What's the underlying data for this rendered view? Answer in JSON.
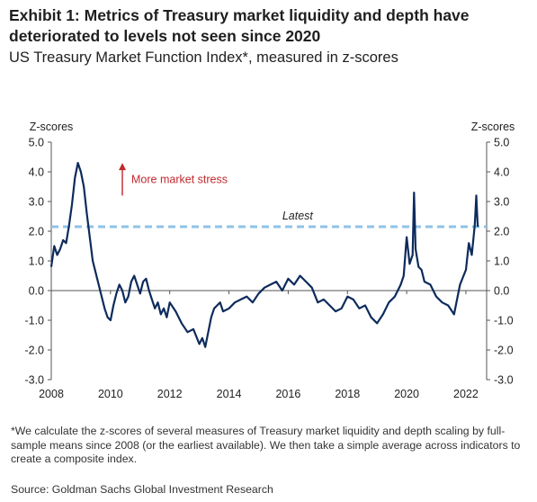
{
  "header": {
    "title": "Exhibit 1: Metrics of Treasury market liquidity and depth have deteriorated to levels not seen since 2020",
    "subtitle": "US Treasury Market Function Index*, measured in z-scores"
  },
  "footer": {
    "footnote": "*We calculate the z-scores of several measures of Treasury market liquidity and depth scaling by full-sample means since 2008 (or the earliest available). We then take a simple average across indicators to create a composite index.",
    "source": "Source: Goldman Sachs Global Investment Research"
  },
  "colors": {
    "line": "#0d2b5c",
    "latest": "#8fc3e8",
    "annotation": "#c0282d",
    "axis": "#555555"
  },
  "chart_data": {
    "type": "line",
    "ylabel_left": "Z-scores",
    "ylabel_right": "Z-scores",
    "ylim": [
      -3.0,
      5.0
    ],
    "xlim": [
      2008,
      2022.7
    ],
    "y_ticks": [
      {
        "value": 5.0,
        "label": "5.0"
      },
      {
        "value": 4.0,
        "label": "4.0"
      },
      {
        "value": 3.0,
        "label": "3.0"
      },
      {
        "value": 2.0,
        "label": "2.0"
      },
      {
        "value": 1.0,
        "label": "1.0"
      },
      {
        "value": 0.0,
        "label": "0.0"
      },
      {
        "value": -1.0,
        "label": "-1.0"
      },
      {
        "value": -2.0,
        "label": "-2.0"
      },
      {
        "value": -3.0,
        "label": "-3.0"
      }
    ],
    "x_ticks": [
      {
        "value": 2008,
        "label": "2008"
      },
      {
        "value": 2010,
        "label": "2010"
      },
      {
        "value": 2012,
        "label": "2012"
      },
      {
        "value": 2014,
        "label": "2014"
      },
      {
        "value": 2016,
        "label": "2016"
      },
      {
        "value": 2018,
        "label": "2018"
      },
      {
        "value": 2020,
        "label": "2020"
      },
      {
        "value": 2022,
        "label": "2022"
      }
    ],
    "grid": false,
    "latest": {
      "value": 2.15,
      "label": "Latest"
    },
    "annotation": {
      "label": "More market stress",
      "x": 2010.4,
      "y_from": 3.2,
      "y_to": 4.3
    },
    "series": [
      {
        "x": [
          2008.0,
          2008.1,
          2008.2,
          2008.3,
          2008.4,
          2008.5,
          2008.6,
          2008.7,
          2008.8,
          2008.9,
          2009.0,
          2009.1,
          2009.2,
          2009.3,
          2009.4,
          2009.5,
          2009.6,
          2009.7,
          2009.8,
          2009.9,
          2010.0,
          2010.1,
          2010.2,
          2010.3,
          2010.4,
          2010.5,
          2010.6,
          2010.7,
          2010.8,
          2010.9,
          2011.0,
          2011.1,
          2011.2,
          2011.3,
          2011.4,
          2011.5,
          2011.6,
          2011.7,
          2011.8,
          2011.9,
          2012.0,
          2012.2,
          2012.4,
          2012.6,
          2012.8,
          2013.0,
          2013.1,
          2013.2,
          2013.3,
          2013.4,
          2013.5,
          2013.6,
          2013.7,
          2013.8,
          2014.0,
          2014.2,
          2014.4,
          2014.6,
          2014.8,
          2015.0,
          2015.2,
          2015.4,
          2015.6,
          2015.8,
          2016.0,
          2016.2,
          2016.4,
          2016.6,
          2016.8,
          2017.0,
          2017.2,
          2017.4,
          2017.6,
          2017.8,
          2018.0,
          2018.2,
          2018.4,
          2018.6,
          2018.8,
          2019.0,
          2019.2,
          2019.4,
          2019.6,
          2019.8,
          2019.9,
          2020.0,
          2020.1,
          2020.2,
          2020.25,
          2020.3,
          2020.4,
          2020.5,
          2020.6,
          2020.8,
          2021.0,
          2021.2,
          2021.4,
          2021.6,
          2021.8,
          2022.0,
          2022.1,
          2022.2,
          2022.3,
          2022.35,
          2022.4
        ],
        "values": [
          0.8,
          1.5,
          1.2,
          1.4,
          1.7,
          1.6,
          2.2,
          2.9,
          3.8,
          4.3,
          4.0,
          3.5,
          2.6,
          1.8,
          1.0,
          0.6,
          0.2,
          -0.2,
          -0.6,
          -0.9,
          -1.0,
          -0.5,
          -0.1,
          0.2,
          0.0,
          -0.4,
          -0.2,
          0.3,
          0.5,
          0.2,
          -0.1,
          0.3,
          0.4,
          0.0,
          -0.3,
          -0.6,
          -0.4,
          -0.8,
          -0.6,
          -0.9,
          -0.4,
          -0.7,
          -1.1,
          -1.4,
          -1.3,
          -1.8,
          -1.6,
          -1.9,
          -1.4,
          -0.9,
          -0.6,
          -0.5,
          -0.4,
          -0.7,
          -0.6,
          -0.4,
          -0.3,
          -0.2,
          -0.4,
          -0.1,
          0.1,
          0.2,
          0.3,
          0.0,
          0.4,
          0.2,
          0.5,
          0.3,
          0.1,
          -0.4,
          -0.3,
          -0.5,
          -0.7,
          -0.6,
          -0.2,
          -0.3,
          -0.6,
          -0.5,
          -0.9,
          -1.1,
          -0.8,
          -0.4,
          -0.2,
          0.2,
          0.5,
          1.8,
          0.9,
          1.2,
          3.3,
          1.4,
          0.8,
          0.7,
          0.3,
          0.2,
          -0.2,
          -0.4,
          -0.5,
          -0.8,
          0.2,
          0.7,
          1.6,
          1.2,
          2.2,
          3.2,
          2.15
        ]
      }
    ]
  }
}
